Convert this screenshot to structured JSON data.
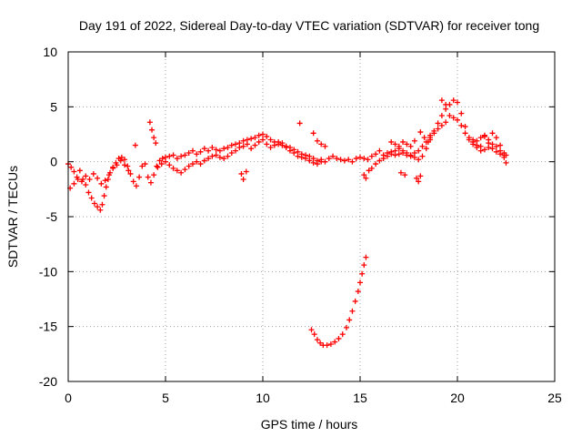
{
  "chart_data": {
    "type": "scatter",
    "title": "Day 191 of 2022, Sidereal Day-to-day VTEC variation (SDTVAR) for receiver tong",
    "xlabel": "GPS time / hours",
    "ylabel": "SDTVAR / TECUs",
    "xlim": [
      0,
      25
    ],
    "ylim": [
      -20,
      10
    ],
    "xticks": [
      0,
      5,
      10,
      15,
      20,
      25
    ],
    "yticks": [
      10,
      5,
      0,
      -5,
      -10,
      -15,
      -20
    ],
    "grid": true,
    "marker": "+",
    "color": "#ff0000",
    "series": [
      {
        "name": "main",
        "points": [
          [
            0.0,
            -0.2
          ],
          [
            0.15,
            -0.5
          ],
          [
            0.3,
            -0.9
          ],
          [
            0.45,
            -1.4
          ],
          [
            0.6,
            -0.8
          ],
          [
            0.75,
            -1.6
          ],
          [
            0.9,
            -2.1
          ],
          [
            1.05,
            -2.8
          ],
          [
            1.2,
            -3.3
          ],
          [
            1.35,
            -3.8
          ],
          [
            1.5,
            -4.1
          ],
          [
            1.65,
            -4.4
          ],
          [
            1.75,
            -3.9
          ],
          [
            1.85,
            -3.1
          ],
          [
            1.95,
            -2.3
          ],
          [
            2.05,
            -1.6
          ],
          [
            2.15,
            -1.0
          ],
          [
            2.3,
            -0.5
          ],
          [
            2.45,
            -0.1
          ],
          [
            2.6,
            0.3
          ],
          [
            2.75,
            0.4
          ],
          [
            2.9,
            0.2
          ],
          [
            3.05,
            -0.4
          ],
          [
            3.2,
            -1.1
          ],
          [
            3.35,
            -1.8
          ],
          [
            3.5,
            -2.2
          ],
          [
            3.65,
            -1.4
          ],
          [
            3.8,
            -0.4
          ],
          [
            3.95,
            -0.2
          ],
          [
            4.1,
            -1.4
          ],
          [
            4.25,
            -1.9
          ],
          [
            4.4,
            -1.2
          ],
          [
            4.55,
            -0.4
          ],
          [
            4.7,
            0.1
          ],
          [
            4.85,
            0.3
          ],
          [
            5.0,
            0.4
          ],
          [
            5.2,
            0.5
          ],
          [
            5.4,
            0.6
          ],
          [
            5.6,
            0.3
          ],
          [
            5.8,
            0.5
          ],
          [
            6.0,
            0.6
          ],
          [
            6.2,
            0.8
          ],
          [
            6.4,
            1.0
          ],
          [
            6.6,
            0.7
          ],
          [
            6.8,
            0.9
          ],
          [
            7.0,
            1.2
          ],
          [
            7.2,
            1.0
          ],
          [
            7.4,
            1.3
          ],
          [
            7.6,
            1.1
          ],
          [
            7.8,
            1.0
          ],
          [
            8.0,
            1.2
          ],
          [
            8.2,
            1.3
          ],
          [
            8.4,
            1.5
          ],
          [
            8.6,
            1.6
          ],
          [
            8.8,
            1.7
          ],
          [
            9.0,
            1.9
          ],
          [
            9.2,
            2.0
          ],
          [
            9.4,
            2.1
          ],
          [
            9.6,
            2.2
          ],
          [
            9.8,
            2.4
          ],
          [
            10.0,
            2.5
          ],
          [
            10.2,
            2.3
          ],
          [
            10.4,
            2.0
          ],
          [
            10.6,
            1.8
          ],
          [
            10.8,
            1.6
          ],
          [
            11.0,
            1.5
          ],
          [
            11.2,
            1.4
          ],
          [
            11.4,
            1.3
          ],
          [
            11.6,
            1.1
          ],
          [
            11.8,
            0.9
          ],
          [
            12.0,
            0.7
          ],
          [
            12.2,
            0.6
          ],
          [
            12.4,
            0.5
          ],
          [
            12.6,
            0.3
          ],
          [
            12.8,
            0.1
          ],
          [
            13.0,
            0.2
          ],
          [
            13.2,
            0.0
          ],
          [
            13.4,
            0.3
          ],
          [
            13.6,
            0.5
          ],
          [
            13.8,
            0.3
          ],
          [
            14.0,
            0.2
          ],
          [
            14.2,
            0.1
          ],
          [
            14.4,
            0.2
          ],
          [
            14.6,
            0.0
          ],
          [
            14.8,
            0.3
          ],
          [
            15.0,
            0.4
          ],
          [
            15.2,
            0.3
          ],
          [
            15.4,
            0.2
          ],
          [
            15.6,
            0.5
          ],
          [
            15.8,
            0.7
          ],
          [
            16.0,
            1.0
          ],
          [
            16.2,
            0.6
          ],
          [
            16.4,
            0.8
          ],
          [
            16.6,
            0.9
          ],
          [
            16.8,
            0.6
          ],
          [
            17.0,
            0.7
          ],
          [
            17.2,
            0.8
          ],
          [
            17.4,
            0.6
          ],
          [
            17.6,
            0.5
          ],
          [
            17.8,
            0.4
          ],
          [
            18.0,
            0.2
          ],
          [
            18.2,
            0.5
          ],
          [
            18.4,
            1.2
          ],
          [
            18.6,
            2.0
          ],
          [
            18.8,
            2.8
          ],
          [
            19.0,
            3.5
          ],
          [
            19.2,
            4.2
          ],
          [
            19.4,
            4.8
          ],
          [
            19.6,
            5.2
          ],
          [
            19.8,
            5.6
          ],
          [
            20.0,
            5.4
          ],
          [
            20.2,
            4.4
          ],
          [
            20.4,
            3.2
          ],
          [
            20.6,
            2.2
          ],
          [
            20.8,
            1.6
          ],
          [
            21.0,
            1.3
          ],
          [
            21.2,
            1.0
          ],
          [
            21.4,
            1.1
          ],
          [
            21.6,
            1.3
          ],
          [
            21.8,
            1.2
          ],
          [
            22.0,
            0.9
          ],
          [
            22.2,
            0.7
          ],
          [
            22.4,
            0.4
          ],
          [
            22.5,
            0.6
          ]
        ]
      },
      {
        "name": "secondary",
        "points": [
          [
            0.1,
            -2.4
          ],
          [
            0.3,
            -2.0
          ],
          [
            0.5,
            -1.6
          ],
          [
            0.7,
            -1.8
          ],
          [
            0.9,
            -1.3
          ],
          [
            1.1,
            -1.6
          ],
          [
            1.3,
            -1.1
          ],
          [
            1.5,
            -1.5
          ],
          [
            1.7,
            -2.0
          ],
          [
            1.9,
            -1.7
          ],
          [
            2.1,
            -1.2
          ],
          [
            2.3,
            -0.6
          ],
          [
            2.5,
            -0.3
          ],
          [
            2.7,
            0.1
          ],
          [
            2.9,
            -0.3
          ],
          [
            3.1,
            -0.8
          ],
          [
            4.6,
            -0.5
          ],
          [
            4.8,
            -0.2
          ],
          [
            5.0,
            0.0
          ],
          [
            5.2,
            -0.3
          ],
          [
            5.4,
            -0.6
          ],
          [
            5.6,
            -0.8
          ],
          [
            5.8,
            -1.0
          ],
          [
            6.0,
            -0.7
          ],
          [
            6.2,
            -0.4
          ],
          [
            6.4,
            -0.2
          ],
          [
            6.6,
            0.0
          ],
          [
            6.8,
            -0.2
          ],
          [
            7.0,
            0.1
          ],
          [
            7.2,
            0.3
          ],
          [
            7.4,
            0.5
          ],
          [
            7.6,
            0.6
          ],
          [
            7.8,
            0.4
          ],
          [
            8.0,
            0.3
          ],
          [
            8.2,
            0.5
          ],
          [
            8.4,
            0.8
          ],
          [
            8.6,
            1.0
          ],
          [
            8.8,
            1.3
          ],
          [
            9.0,
            1.4
          ],
          [
            9.2,
            1.6
          ],
          [
            9.4,
            1.2
          ],
          [
            9.6,
            1.5
          ],
          [
            9.8,
            1.8
          ],
          [
            10.0,
            2.0
          ],
          [
            10.2,
            1.6
          ],
          [
            10.4,
            1.3
          ],
          [
            10.6,
            1.5
          ],
          [
            10.8,
            1.8
          ],
          [
            11.0,
            1.7
          ],
          [
            11.2,
            1.3
          ],
          [
            11.4,
            1.0
          ],
          [
            11.6,
            0.8
          ],
          [
            11.8,
            0.5
          ],
          [
            12.0,
            0.4
          ],
          [
            12.2,
            0.3
          ],
          [
            12.4,
            0.1
          ],
          [
            12.6,
            -0.1
          ],
          [
            12.8,
            -0.2
          ],
          [
            13.0,
            0.0
          ],
          [
            15.6,
            -0.6
          ],
          [
            15.8,
            -0.2
          ],
          [
            16.0,
            0.1
          ],
          [
            16.2,
            0.3
          ],
          [
            16.4,
            0.5
          ],
          [
            16.6,
            0.7
          ],
          [
            16.8,
            1.0
          ],
          [
            17.0,
            1.2
          ],
          [
            17.2,
            1.0
          ],
          [
            17.4,
            0.8
          ],
          [
            17.6,
            0.6
          ],
          [
            17.8,
            0.8
          ],
          [
            18.0,
            1.0
          ],
          [
            18.2,
            1.4
          ],
          [
            18.4,
            1.8
          ],
          [
            18.6,
            2.2
          ],
          [
            18.8,
            2.6
          ],
          [
            19.0,
            3.0
          ],
          [
            19.2,
            3.3
          ],
          [
            19.4,
            3.6
          ],
          [
            19.6,
            4.2
          ],
          [
            19.8,
            4.0
          ],
          [
            20.0,
            3.8
          ],
          [
            20.2,
            3.3
          ],
          [
            20.4,
            2.6
          ],
          [
            20.6,
            2.0
          ],
          [
            20.8,
            1.8
          ],
          [
            21.0,
            1.9
          ],
          [
            21.2,
            2.2
          ],
          [
            21.4,
            2.4
          ],
          [
            21.6,
            2.0
          ],
          [
            21.8,
            1.6
          ],
          [
            22.0,
            1.4
          ],
          [
            22.2,
            1.0
          ],
          [
            22.4,
            0.8
          ]
        ]
      },
      {
        "name": "outliers",
        "points": [
          [
            3.45,
            1.5
          ],
          [
            4.2,
            3.6
          ],
          [
            4.3,
            2.9
          ],
          [
            4.4,
            2.2
          ],
          [
            4.5,
            1.7
          ],
          [
            8.9,
            -1.1
          ],
          [
            9.0,
            -1.6
          ],
          [
            9.15,
            -0.9
          ],
          [
            11.9,
            3.5
          ],
          [
            12.6,
            2.6
          ],
          [
            12.8,
            1.9
          ],
          [
            13.0,
            1.6
          ],
          [
            13.2,
            1.4
          ],
          [
            15.2,
            -1.2
          ],
          [
            15.3,
            -1.5
          ],
          [
            15.45,
            -0.8
          ],
          [
            16.6,
            1.8
          ],
          [
            16.8,
            1.6
          ],
          [
            17.0,
            1.4
          ],
          [
            17.2,
            1.8
          ],
          [
            17.4,
            1.6
          ],
          [
            17.6,
            1.4
          ],
          [
            17.8,
            1.9
          ],
          [
            18.1,
            2.7
          ],
          [
            18.3,
            2.2
          ],
          [
            18.5,
            1.8
          ],
          [
            18.6,
            2.4
          ],
          [
            17.1,
            -1.0
          ],
          [
            17.3,
            -1.2
          ],
          [
            17.9,
            -1.5
          ],
          [
            18.0,
            -1.8
          ],
          [
            18.1,
            -1.3
          ],
          [
            19.2,
            5.6
          ],
          [
            19.4,
            5.2
          ],
          [
            20.8,
            2.0
          ],
          [
            21.0,
            1.5
          ],
          [
            21.2,
            1.4
          ],
          [
            21.4,
            2.3
          ],
          [
            21.6,
            1.7
          ],
          [
            21.8,
            2.6
          ],
          [
            22.0,
            2.2
          ],
          [
            22.2,
            1.5
          ],
          [
            22.4,
            0.6
          ],
          [
            22.5,
            -0.1
          ]
        ]
      },
      {
        "name": "dip-arc",
        "points": [
          [
            12.5,
            -15.3
          ],
          [
            12.65,
            -15.7
          ],
          [
            12.8,
            -16.2
          ],
          [
            12.95,
            -16.5
          ],
          [
            13.1,
            -16.7
          ],
          [
            13.3,
            -16.7
          ],
          [
            13.5,
            -16.6
          ],
          [
            13.7,
            -16.4
          ],
          [
            13.9,
            -16.1
          ],
          [
            14.1,
            -15.7
          ],
          [
            14.3,
            -15.1
          ],
          [
            14.45,
            -14.4
          ],
          [
            14.6,
            -13.6
          ],
          [
            14.75,
            -12.7
          ],
          [
            14.9,
            -11.8
          ],
          [
            15.0,
            -11.0
          ],
          [
            15.1,
            -10.2
          ],
          [
            15.2,
            -9.4
          ],
          [
            15.3,
            -8.7
          ]
        ]
      }
    ]
  }
}
